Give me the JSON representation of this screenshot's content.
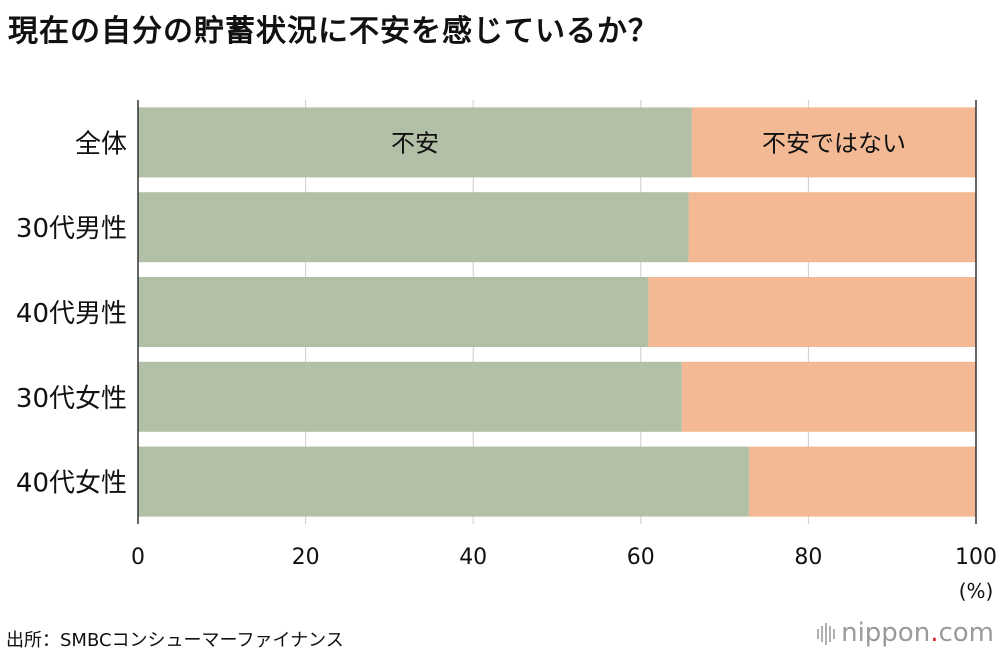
{
  "chart_data": {
    "type": "bar",
    "orientation": "horizontal",
    "stacked": true,
    "title": "現在の自分の貯蓄状況に不安を感じているか？",
    "categories": [
      "全体",
      "30代男性",
      "40代男性",
      "30代女性",
      "40代女性"
    ],
    "series": [
      {
        "name": "不安",
        "color": "#b3c0a8",
        "values": [
          66.1,
          65.7,
          60.9,
          64.9,
          72.9
        ]
      },
      {
        "name": "不安ではない",
        "color": "#f2b994",
        "values": [
          33.9,
          34.3,
          39.1,
          35.1,
          27.1
        ]
      }
    ],
    "xlim": [
      0,
      100
    ],
    "xticks": [
      "0",
      "20",
      "40",
      "60",
      "80",
      "100"
    ],
    "unit_label": "(%)",
    "grid": true
  },
  "source": "出所：SMBCコンシューマーファイナンス",
  "logo": {
    "name": "nippon",
    "dot": ".",
    "suffix": "com"
  }
}
